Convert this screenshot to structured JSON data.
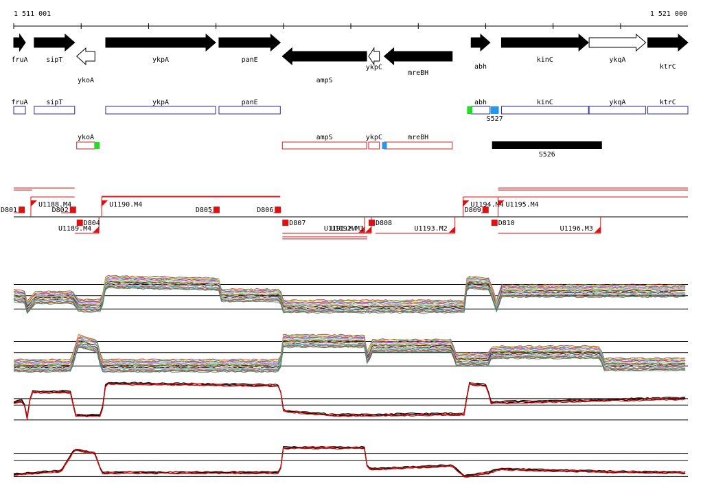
{
  "ruler": {
    "start_label": "1 511 001",
    "end_label": "1 521 000",
    "start": 1511001,
    "end": 1521000
  },
  "genes_row": [
    {
      "name": "fruA",
      "start": 1511001,
      "end": 1511175,
      "strand": "+",
      "filled": true,
      "label_row": "top"
    },
    {
      "name": "sipT",
      "start": 1511305,
      "end": 1511905,
      "strand": "+",
      "filled": true,
      "label_row": "top"
    },
    {
      "name": "ykoA",
      "start": 1511935,
      "end": 1512205,
      "strand": "-",
      "filled": false,
      "label_row": "bottom"
    },
    {
      "name": "ykpA",
      "start": 1512365,
      "end": 1513995,
      "strand": "+",
      "filled": true,
      "label_row": "top"
    },
    {
      "name": "panE",
      "start": 1514045,
      "end": 1514955,
      "strand": "+",
      "filled": true,
      "label_row": "top"
    },
    {
      "name": "ampS",
      "start": 1514985,
      "end": 1516235,
      "strand": "-",
      "filled": true,
      "label_row": "bottom"
    },
    {
      "name": "ykpC",
      "start": 1516265,
      "end": 1516425,
      "strand": "-",
      "filled": false,
      "label_row": "top"
    },
    {
      "name": "mreBH",
      "start": 1516495,
      "end": 1517505,
      "strand": "-",
      "filled": true,
      "label_row": "bottom"
    },
    {
      "name": "abh",
      "start": 1517785,
      "end": 1518065,
      "strand": "+",
      "filled": true,
      "label_row": "bottom"
    },
    {
      "name": "kinC",
      "start": 1518235,
      "end": 1519525,
      "strand": "+",
      "filled": true,
      "label_row": "top"
    },
    {
      "name": "ykqA",
      "start": 1519535,
      "end": 1520375,
      "strand": "+",
      "filled": false,
      "label_row": "top"
    },
    {
      "name": "ktrC",
      "start": 1520405,
      "end": 1521000,
      "strand": "+",
      "filled": true,
      "label_row": "bottom"
    }
  ],
  "forward_boxes": [
    {
      "name": "fruA",
      "start": 1511001,
      "end": 1511175
    },
    {
      "name": "sipT",
      "start": 1511305,
      "end": 1511905
    },
    {
      "name": "ykpA",
      "start": 1512365,
      "end": 1513995
    },
    {
      "name": "panE",
      "start": 1514045,
      "end": 1514955
    },
    {
      "name": "abh",
      "start": 1517785,
      "end": 1518065
    },
    {
      "name": "kinC",
      "start": 1518235,
      "end": 1519525
    },
    {
      "name": "ykqA",
      "start": 1519535,
      "end": 1520375
    },
    {
      "name": "ktrC",
      "start": 1520405,
      "end": 1521000
    }
  ],
  "reverse_boxes": [
    {
      "name": "ykoA",
      "start": 1511935,
      "end": 1512205
    },
    {
      "name": "ampS",
      "start": 1514985,
      "end": 1516235
    },
    {
      "name": "ykpC",
      "start": 1516265,
      "end": 1516425
    },
    {
      "name": "mreBH",
      "start": 1516495,
      "end": 1517505
    }
  ],
  "markers": [
    {
      "name": "",
      "pos": 1517725,
      "width": 80,
      "row": "forward",
      "color": "#22dd22"
    },
    {
      "name": "S527",
      "pos": 1518075,
      "width": 120,
      "row": "forward",
      "color": "#2299ee"
    },
    {
      "name": "",
      "pos": 1512195,
      "width": 80,
      "row": "reverse",
      "color": "#22dd22"
    },
    {
      "name": "",
      "pos": 1516465,
      "width": 70,
      "row": "reverse",
      "color": "#2299ee"
    }
  ],
  "bars": [
    {
      "name": "S526",
      "start": 1518095,
      "end": 1519725,
      "color": "#000000"
    }
  ],
  "segments": {
    "top_red_lines": [
      {
        "start": 1511001,
        "end": 1511905,
        "dy": 0
      },
      {
        "start": 1511001,
        "end": 1511275,
        "dy": 3
      },
      {
        "start": 1512305,
        "end": 1514955,
        "dy": 12
      },
      {
        "start": 1518185,
        "end": 1521000,
        "dy": 0
      },
      {
        "start": 1518185,
        "end": 1521000,
        "dy": 3
      }
    ],
    "bottom_red_lines": [
      {
        "start": 1514985,
        "end": 1516245,
        "dy": 0
      },
      {
        "start": 1514985,
        "end": 1516245,
        "dy": 3
      }
    ],
    "up_labels": [
      {
        "name": "D801",
        "pos": 1511001,
        "end": 1511165,
        "anchor": "end_left"
      },
      {
        "name": "U1188.M4",
        "pos": 1511255,
        "end": 1511905
      },
      {
        "name": "D802",
        "pos": 1511705,
        "end": 1511925,
        "anchor": "end_left"
      },
      {
        "name": "U1190.M4",
        "pos": 1512305,
        "end": 1514955
      },
      {
        "name": "D805",
        "pos": 1513905,
        "end": 1514055,
        "anchor": "end_left"
      },
      {
        "name": "D806",
        "pos": 1514855,
        "end": 1514965,
        "anchor": "end_left"
      },
      {
        "name": "U1194.M4",
        "pos": 1517665,
        "end": 1518185
      },
      {
        "name": "D809",
        "pos": 1517935,
        "end": 1518045,
        "anchor": "end_left"
      },
      {
        "name": "U1195.M4",
        "pos": 1518185,
        "end": 1521000
      }
    ],
    "down_labels": [
      {
        "name": "U1189.M4",
        "pos": 1511905,
        "end": 1512265
      },
      {
        "name": "D804",
        "pos": 1511935,
        "end": 1512035
      },
      {
        "name": "D807",
        "pos": 1514985,
        "end": 1515085
      },
      {
        "name": "U1191.M4",
        "pos": 1514985,
        "end": 1516205
      },
      {
        "name": "U1192.M3",
        "pos": 1516205,
        "end": 1516305
      },
      {
        "name": "D808",
        "pos": 1516265,
        "end": 1516365
      },
      {
        "name": "U1193.M2",
        "pos": 1516365,
        "end": 1517545
      },
      {
        "name": "D810",
        "pos": 1518085,
        "end": 1518185
      },
      {
        "name": "U1196.M3",
        "pos": 1518185,
        "end": 1519705
      }
    ]
  },
  "tracks": [
    {
      "name": "track1-multi",
      "kind": "multi",
      "ref_lines": [
        0.3,
        0.55,
        0.85
      ],
      "profile": [
        [
          1511001,
          0.55
        ],
        [
          1511175,
          0.6
        ],
        [
          1511205,
          0.85
        ],
        [
          1511305,
          0.6
        ],
        [
          1511905,
          0.6
        ],
        [
          1511935,
          0.78
        ],
        [
          1512305,
          0.78
        ],
        [
          1512365,
          0.25
        ],
        [
          1514045,
          0.3
        ],
        [
          1514075,
          0.55
        ],
        [
          1514955,
          0.55
        ],
        [
          1514985,
          0.8
        ],
        [
          1517685,
          0.8
        ],
        [
          1517725,
          0.25
        ],
        [
          1518055,
          0.3
        ],
        [
          1518165,
          0.8
        ],
        [
          1518235,
          0.45
        ],
        [
          1521000,
          0.45
        ]
      ]
    },
    {
      "name": "track2-multi",
      "kind": "multi",
      "ref_lines": [
        0.3,
        0.55,
        0.85
      ],
      "profile": [
        [
          1511001,
          0.85
        ],
        [
          1511855,
          0.85
        ],
        [
          1511955,
          0.3
        ],
        [
          1512235,
          0.4
        ],
        [
          1512305,
          0.85
        ],
        [
          1514955,
          0.85
        ],
        [
          1514985,
          0.3
        ],
        [
          1516205,
          0.3
        ],
        [
          1516245,
          0.7
        ],
        [
          1516325,
          0.4
        ],
        [
          1517505,
          0.4
        ],
        [
          1517545,
          0.7
        ],
        [
          1518055,
          0.7
        ],
        [
          1518085,
          0.55
        ],
        [
          1519705,
          0.55
        ],
        [
          1519745,
          0.82
        ],
        [
          1521000,
          0.82
        ]
      ]
    },
    {
      "name": "track3-black-red",
      "kind": "pair",
      "ref_lines": [
        0.45,
        0.6,
        0.95
      ],
      "profile": [
        [
          1511001,
          0.55
        ],
        [
          1511145,
          0.5
        ],
        [
          1511205,
          0.95
        ],
        [
          1511255,
          0.3
        ],
        [
          1511855,
          0.3
        ],
        [
          1511905,
          0.85
        ],
        [
          1512305,
          0.85
        ],
        [
          1512365,
          0.1
        ],
        [
          1514945,
          0.15
        ],
        [
          1515005,
          0.75
        ],
        [
          1515785,
          0.85
        ],
        [
          1517705,
          0.82
        ],
        [
          1517735,
          0.1
        ],
        [
          1518025,
          0.15
        ],
        [
          1518065,
          0.55
        ],
        [
          1521000,
          0.45
        ]
      ]
    },
    {
      "name": "track4-black-red",
      "kind": "pair",
      "ref_lines": [
        0.3,
        0.5,
        0.95
      ],
      "profile": [
        [
          1511001,
          0.9
        ],
        [
          1511705,
          0.8
        ],
        [
          1511905,
          0.2
        ],
        [
          1512205,
          0.3
        ],
        [
          1512305,
          0.85
        ],
        [
          1514955,
          0.85
        ],
        [
          1514985,
          0.15
        ],
        [
          1516205,
          0.15
        ],
        [
          1516245,
          0.7
        ],
        [
          1516305,
          0.75
        ],
        [
          1517505,
          0.65
        ],
        [
          1517685,
          0.95
        ],
        [
          1518055,
          0.85
        ],
        [
          1518185,
          0.75
        ],
        [
          1519705,
          0.82
        ],
        [
          1521000,
          0.85
        ]
      ]
    }
  ],
  "colors": {
    "forward": "#2a2aaa",
    "reverse": "#cc2222",
    "segment": "#dd1111",
    "reference": "#000000"
  }
}
